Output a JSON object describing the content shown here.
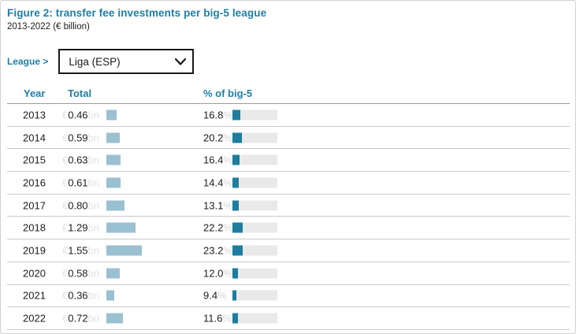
{
  "header": {
    "title": "Figure 2: transfer fee investments per big-5 league",
    "subtitle": "2013-2022 (€ billion)"
  },
  "league_selector": {
    "label": "League >",
    "selected": "Liga (ESP)"
  },
  "table": {
    "columns": [
      "Year",
      "Total",
      "% of big-5"
    ],
    "currency_prefix": "€",
    "unit_suffix": "bn",
    "pct_suffix": "%",
    "rows": [
      {
        "year": "2013",
        "total": "0.46",
        "pct": "16.8"
      },
      {
        "year": "2014",
        "total": "0.59",
        "pct": "20.2"
      },
      {
        "year": "2015",
        "total": "0.63",
        "pct": "16.4"
      },
      {
        "year": "2016",
        "total": "0.61",
        "pct": "14.4"
      },
      {
        "year": "2017",
        "total": "0.80",
        "pct": "13.1"
      },
      {
        "year": "2018",
        "total": "1.29",
        "pct": "22.2"
      },
      {
        "year": "2019",
        "total": "1.55",
        "pct": "23.2"
      },
      {
        "year": "2020",
        "total": "0.58",
        "pct": "12.0"
      },
      {
        "year": "2021",
        "total": "0.36",
        "pct": "9.4"
      },
      {
        "year": "2022",
        "total": "0.72",
        "pct": "11.6"
      }
    ]
  },
  "chart_data": {
    "type": "table",
    "title": "Figure 2: transfer fee investments per big-5 league",
    "subtitle": "2013-2022 (€ billion)",
    "selected_league": "Liga (ESP)",
    "columns": [
      "Year",
      "Total",
      "% of big-5"
    ],
    "categories": [
      "2013",
      "2014",
      "2015",
      "2016",
      "2017",
      "2018",
      "2019",
      "2020",
      "2021",
      "2022"
    ],
    "series": [
      {
        "name": "Total (€ billion)",
        "unit": "€bn",
        "values": [
          0.46,
          0.59,
          0.63,
          0.61,
          0.8,
          1.29,
          1.55,
          0.58,
          0.36,
          0.72
        ]
      },
      {
        "name": "% of big-5",
        "unit": "%",
        "values": [
          16.8,
          20.2,
          16.4,
          14.4,
          13.1,
          22.2,
          23.2,
          12.0,
          9.4,
          11.6
        ]
      }
    ],
    "layout_hints": {
      "total_bar_color": "#9ac0d2",
      "pct_bar_color": "#1e7d9e",
      "pct_bar_track": "#e9e9e9",
      "pct_bar_max": 100
    }
  },
  "colors": {
    "accent": "#1f7ea6",
    "bar_light": "#9ac0d2",
    "bar_dark": "#1e7d9e",
    "track": "#e9e9e9"
  }
}
